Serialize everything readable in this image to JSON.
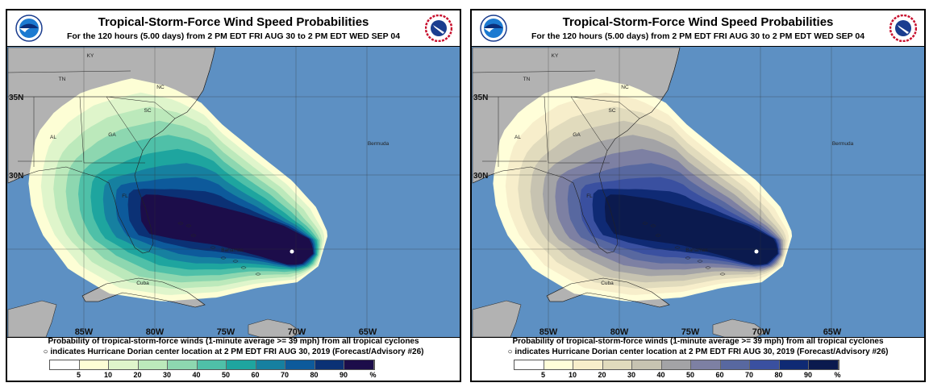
{
  "title": "Tropical-Storm-Force Wind Speed Probabilities",
  "subtitle": "For the 120 hours (5.00 days) from 2 PM EDT FRI AUG 30 to 2 PM EDT WED SEP 04",
  "caption_line1": "Probability of tropical-storm-force winds (1-minute average >= 39 mph) from all tropical cyclones",
  "caption_line2": "indicates Hurricane Dorian center location at 2 PM EDT FRI AUG 30, 2019 (Forecast/Advisory #26)",
  "logos": {
    "left": "NOAA",
    "right": "NATIONAL WEATHER SERVICE"
  },
  "map_labels": {
    "states": [
      "KY",
      "TN",
      "NC",
      "SC",
      "GA",
      "AL",
      "FL"
    ],
    "places": [
      "Bahamas",
      "Cuba",
      "Bermuda"
    ],
    "latitudes": [
      "35N",
      "30N"
    ],
    "longitudes": [
      "85W",
      "80W",
      "75W",
      "70W",
      "65W"
    ]
  },
  "legend": {
    "labels": [
      "5",
      "10",
      "20",
      "30",
      "40",
      "50",
      "60",
      "70",
      "80",
      "90",
      "%"
    ]
  },
  "colors": {
    "ocean": "#5d90c3",
    "land": "#b2b2b2",
    "storm_center": "#ffffff"
  },
  "panels": [
    {
      "palette": [
        "#ffffff",
        "#fdfed5",
        "#dff5cb",
        "#bce9bb",
        "#8dd7b0",
        "#4fc0a8",
        "#1ea59f",
        "#1680a0",
        "#0d5a9b",
        "#0b3175",
        "#1c0d4a"
      ]
    },
    {
      "palette": [
        "#ffffff",
        "#fffed9",
        "#f7eecb",
        "#e1dbbd",
        "#c7c3b1",
        "#a3a3a6",
        "#7d80a3",
        "#5868a0",
        "#3a50a0",
        "#0f2a74",
        "#0b1a4e"
      ]
    }
  ]
}
